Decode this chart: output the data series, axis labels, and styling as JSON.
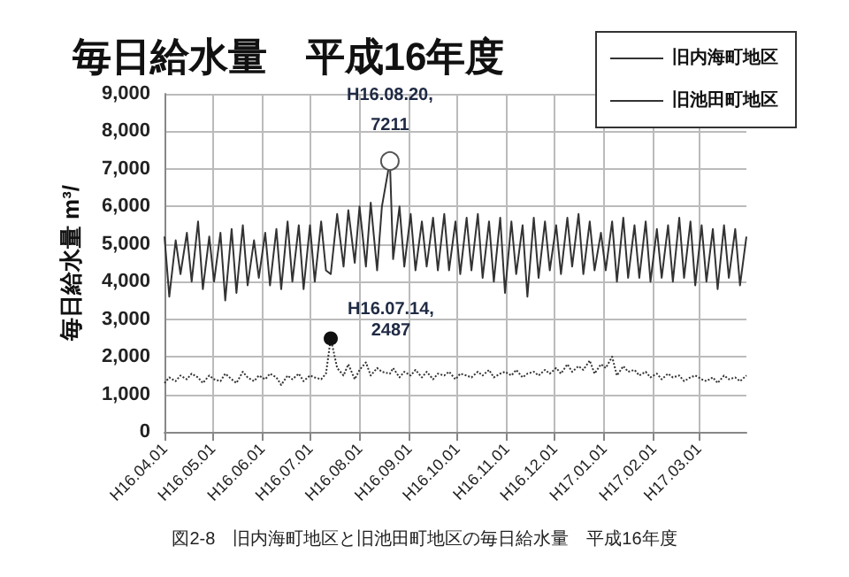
{
  "chart_data": {
    "type": "line",
    "title": "毎日給水量　平成16年度",
    "ylabel": "毎日給水量 m³/",
    "x": [
      "2004-04-01",
      "2004-04-04",
      "2004-04-08",
      "2004-04-11",
      "2004-04-15",
      "2004-04-18",
      "2004-04-22",
      "2004-04-25",
      "2004-04-29",
      "2004-05-02",
      "2004-05-06",
      "2004-05-09",
      "2004-05-13",
      "2004-05-16",
      "2004-05-20",
      "2004-05-23",
      "2004-05-27",
      "2004-05-30",
      "2004-06-03",
      "2004-06-06",
      "2004-06-10",
      "2004-06-13",
      "2004-06-17",
      "2004-06-20",
      "2004-06-24",
      "2004-06-27",
      "2004-07-01",
      "2004-07-04",
      "2004-07-08",
      "2004-07-11",
      "2004-07-14",
      "2004-07-18",
      "2004-07-22",
      "2004-07-25",
      "2004-07-29",
      "2004-08-01",
      "2004-08-05",
      "2004-08-08",
      "2004-08-12",
      "2004-08-15",
      "2004-08-20",
      "2004-08-22",
      "2004-08-26",
      "2004-08-29",
      "2004-09-02",
      "2004-09-05",
      "2004-09-09",
      "2004-09-12",
      "2004-09-16",
      "2004-09-19",
      "2004-09-23",
      "2004-09-26",
      "2004-09-30",
      "2004-10-03",
      "2004-10-07",
      "2004-10-10",
      "2004-10-14",
      "2004-10-17",
      "2004-10-21",
      "2004-10-24",
      "2004-10-28",
      "2004-10-31",
      "2004-11-04",
      "2004-11-07",
      "2004-11-11",
      "2004-11-14",
      "2004-11-18",
      "2004-11-21",
      "2004-11-25",
      "2004-11-28",
      "2004-12-02",
      "2004-12-05",
      "2004-12-09",
      "2004-12-12",
      "2004-12-16",
      "2004-12-19",
      "2004-12-23",
      "2004-12-26",
      "2004-12-30",
      "2005-01-02",
      "2005-01-06",
      "2005-01-09",
      "2005-01-13",
      "2005-01-16",
      "2005-01-20",
      "2005-01-23",
      "2005-01-27",
      "2005-01-30",
      "2005-02-03",
      "2005-02-06",
      "2005-02-10",
      "2005-02-13",
      "2005-02-17",
      "2005-02-20",
      "2005-02-24",
      "2005-02-27",
      "2005-03-03",
      "2005-03-06",
      "2005-03-10",
      "2005-03-13",
      "2005-03-17",
      "2005-03-20",
      "2005-03-24",
      "2005-03-27",
      "2005-03-31"
    ],
    "series": [
      {
        "name": "旧内海町地区",
        "color": "#333333",
        "line_style": "solid",
        "values": [
          5200,
          3600,
          5100,
          4200,
          5300,
          4000,
          5600,
          3800,
          5200,
          4000,
          5300,
          3500,
          5400,
          3700,
          5500,
          3900,
          5100,
          4100,
          5300,
          3900,
          5400,
          3800,
          5600,
          4000,
          5500,
          3800,
          5500,
          4000,
          5600,
          4300,
          4200,
          5800,
          4400,
          5900,
          4500,
          6000,
          4400,
          6100,
          4300,
          6000,
          7211,
          4600,
          6000,
          4400,
          5800,
          4300,
          5600,
          4400,
          5700,
          4300,
          5800,
          4300,
          5600,
          4200,
          5700,
          4300,
          5800,
          4100,
          5600,
          4000,
          5700,
          3700,
          5600,
          4200,
          5500,
          3600,
          5700,
          4100,
          5600,
          4300,
          5500,
          4200,
          5700,
          4400,
          5800,
          4200,
          5600,
          4300,
          5300,
          4300,
          5600,
          4000,
          5700,
          4100,
          5500,
          4100,
          5600,
          4000,
          5400,
          4100,
          5500,
          4000,
          5700,
          4100,
          5600,
          3900,
          5500,
          4000,
          5400,
          3800,
          5500,
          4100,
          5400,
          3900,
          5200
        ]
      },
      {
        "name": "旧池田町地区",
        "color": "#333333",
        "line_style": "dotted",
        "values": [
          1300,
          1450,
          1350,
          1500,
          1400,
          1550,
          1450,
          1300,
          1500,
          1400,
          1350,
          1550,
          1400,
          1300,
          1600,
          1450,
          1350,
          1500,
          1400,
          1550,
          1450,
          1250,
          1500,
          1400,
          1550,
          1350,
          1500,
          1450,
          1400,
          1550,
          2487,
          1700,
          1500,
          1800,
          1400,
          1650,
          1850,
          1500,
          1700,
          1600,
          1550,
          1700,
          1450,
          1600,
          1500,
          1650,
          1450,
          1600,
          1400,
          1550,
          1500,
          1600,
          1400,
          1550,
          1500,
          1450,
          1600,
          1500,
          1650,
          1450,
          1550,
          1600,
          1500,
          1650,
          1450,
          1550,
          1600,
          1500,
          1650,
          1550,
          1700,
          1550,
          1800,
          1600,
          1750,
          1650,
          1900,
          1550,
          1800,
          1700,
          2000,
          1500,
          1750,
          1600,
          1650,
          1500,
          1600,
          1450,
          1550,
          1400,
          1550,
          1450,
          1500,
          1350,
          1450,
          1500,
          1400,
          1350,
          1450,
          1300,
          1500,
          1400,
          1450,
          1350,
          1500
        ]
      }
    ],
    "xlim": [
      "2004-04-01",
      "2005-03-31"
    ],
    "xticks": [
      {
        "value": "2004-04-01",
        "label": "H16.04.01"
      },
      {
        "value": "2004-05-01",
        "label": "H16.05.01"
      },
      {
        "value": "2004-06-01",
        "label": "H16.06.01"
      },
      {
        "value": "2004-07-01",
        "label": "H16.07.01"
      },
      {
        "value": "2004-08-01",
        "label": "H16.08.01"
      },
      {
        "value": "2004-09-01",
        "label": "H16.09.01"
      },
      {
        "value": "2004-10-01",
        "label": "H16.10.01"
      },
      {
        "value": "2004-11-01",
        "label": "H16.11.01"
      },
      {
        "value": "2004-12-01",
        "label": "H16.12.01"
      },
      {
        "value": "2005-01-01",
        "label": "H17.01.01"
      },
      {
        "value": "2005-02-01",
        "label": "H17.02.01"
      },
      {
        "value": "2005-03-01",
        "label": "H17.03.01"
      }
    ],
    "ylim": [
      0,
      9000
    ],
    "yticks": [
      {
        "value": 0,
        "label": "0"
      },
      {
        "value": 1000,
        "label": "1,000"
      },
      {
        "value": 2000,
        "label": "2,000"
      },
      {
        "value": 3000,
        "label": "3,000"
      },
      {
        "value": 4000,
        "label": "4,000"
      },
      {
        "value": 5000,
        "label": "5,000"
      },
      {
        "value": 6000,
        "label": "6,000"
      },
      {
        "value": 7000,
        "label": "7,000"
      },
      {
        "value": 8000,
        "label": "8,000"
      },
      {
        "value": 9000,
        "label": "9,000"
      }
    ],
    "grid": true,
    "legend": "top right",
    "marker": "none",
    "annotations": [
      {
        "text": "H16.08.20,\n7211",
        "x": "2004-08-20",
        "y": 7211
      },
      {
        "text": "H16.07.14,\n2487",
        "x": "2004-07-14",
        "y": 2487
      },
      "図2-8　旧内海町地区と旧池田町地区の毎日給水量　平成16年度"
    ]
  }
}
